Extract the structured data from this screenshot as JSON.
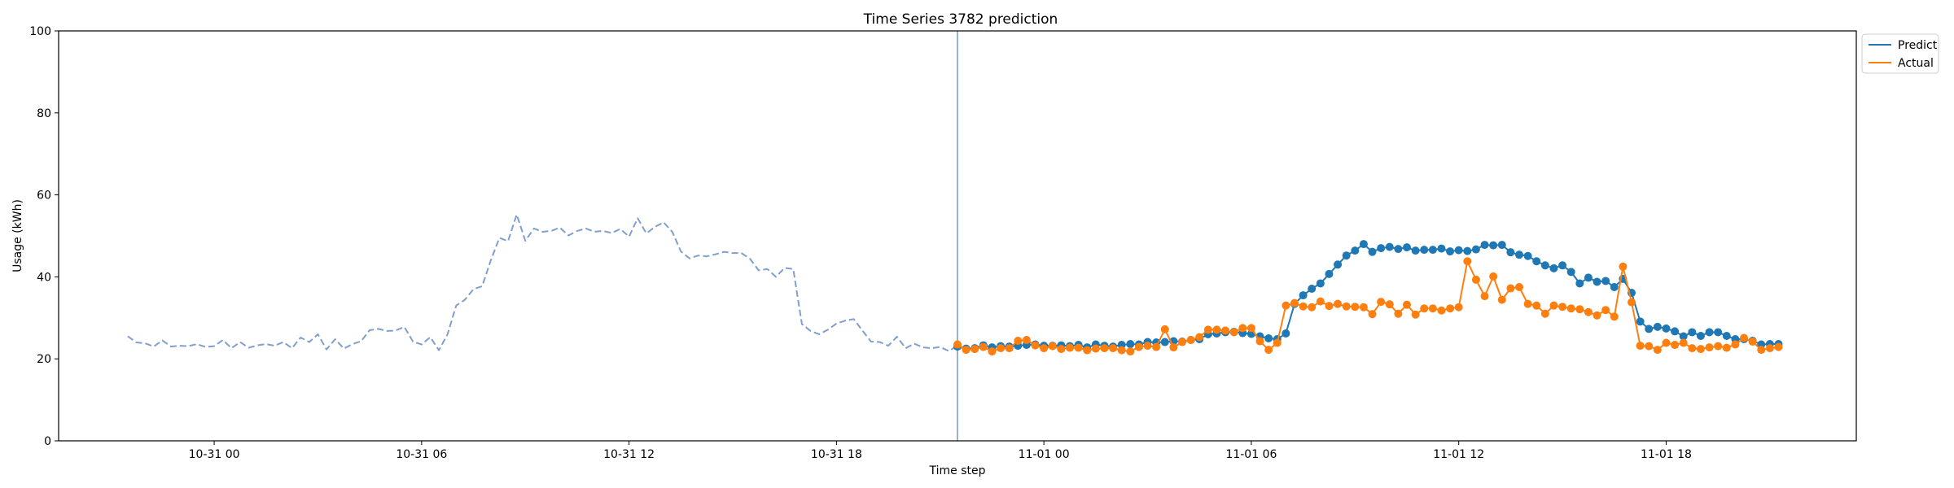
{
  "chart_data": {
    "type": "line",
    "title": "Time Series 3782 prediction",
    "xlabel": "Time step",
    "ylabel": "Usage (kWh)",
    "ylim": [
      0,
      100
    ],
    "yticks": [
      0,
      20,
      40,
      60,
      80,
      100
    ],
    "xlim": [
      -18,
      190
    ],
    "xticks": [
      {
        "x": 0,
        "label": "10-31 00"
      },
      {
        "x": 24,
        "label": "10-31 06"
      },
      {
        "x": 48,
        "label": "10-31 12"
      },
      {
        "x": 72,
        "label": "10-31 18"
      },
      {
        "x": 96,
        "label": "11-01 00"
      },
      {
        "x": 120,
        "label": "11-01 06"
      },
      {
        "x": 144,
        "label": "11-01 12"
      },
      {
        "x": 168,
        "label": "11-01 18"
      }
    ],
    "split_x": 86,
    "grid": false,
    "legend_position": "outside-top-right",
    "colors": {
      "history": "#7f9fcc",
      "predict": "#1f77b4",
      "actual": "#ff7f0e",
      "split_line": "#7f9fcc"
    },
    "history": {
      "x_start": -10,
      "values": [
        25.5,
        24,
        23.8,
        23,
        24.5,
        23,
        23.2,
        23.1,
        23.6,
        22.9,
        23.1,
        24.6,
        22.6,
        24.1,
        22.7,
        23.3,
        23.6,
        23.2,
        24.1,
        22.6,
        25.2,
        24.1,
        26,
        22.3,
        24.8,
        22.5,
        23.6,
        24.3,
        27,
        27.3,
        26.8,
        26.9,
        27.8,
        24.2,
        23.5,
        25.3,
        22.1,
        26,
        33,
        34.4,
        37,
        37.7,
        44,
        49.5,
        48.7,
        55.2,
        48.8,
        51.8,
        51,
        51.2,
        52,
        50.1,
        51.2,
        51.8,
        51,
        51.2,
        50.7,
        51.7,
        49.8,
        54.3,
        50.6,
        52.2,
        53.3,
        51,
        46.2,
        44.5,
        45.2,
        45,
        45.5,
        46.1,
        45.8,
        45.8,
        44.4,
        41.6,
        41.9,
        40,
        42.2,
        41.9,
        28.5,
        26.8,
        26,
        27.1,
        28.6,
        29.3,
        29.7,
        26.9,
        24.2,
        24.1,
        23.2,
        25.4,
        22.6,
        23.7,
        22.8,
        22.6,
        22.9,
        21.9,
        23.2
      ]
    },
    "series": [
      {
        "name": "Predict",
        "x_start": 86,
        "values": [
          23,
          22.5,
          22.6,
          23.3,
          22.8,
          23.1,
          23,
          23.2,
          23.4,
          23.5,
          23.2,
          23.2,
          23.3,
          23.1,
          23.4,
          22.8,
          23.5,
          23.2,
          23,
          23.4,
          23.6,
          23.5,
          24.1,
          24,
          24.1,
          24.3,
          24.2,
          24.6,
          24.8,
          26,
          26.2,
          26.5,
          26.6,
          26.3,
          26.1,
          25.5,
          25,
          24.8,
          26.2,
          33.4,
          35.5,
          37.1,
          38.4,
          40.7,
          43,
          45.2,
          46.4,
          48,
          46.1,
          47,
          47.3,
          46.8,
          47.2,
          46.4,
          46.6,
          46.6,
          46.9,
          46.2,
          46.5,
          46.3,
          46.7,
          47.8,
          47.7,
          47.8,
          46,
          45.4,
          45.1,
          43.8,
          42.8,
          42.1,
          42.8,
          41.2,
          38.4,
          39.8,
          38.8,
          39,
          37.5,
          39.5,
          36.1,
          29.1,
          27.3,
          27.8,
          27.4,
          26.7,
          25.5,
          26.5,
          25.6,
          26.5,
          26.5,
          25.6,
          24.8,
          24.8,
          24.4,
          23.5,
          23.6,
          23.6
        ]
      },
      {
        "name": "Actual",
        "x_start": 86,
        "values": [
          23.5,
          22.2,
          22.4,
          22.9,
          21.8,
          22.6,
          22.6,
          24.4,
          24.6,
          23.3,
          22.6,
          23.1,
          22.4,
          22.7,
          22.7,
          22.1,
          22.5,
          22.6,
          22.6,
          22.1,
          21.8,
          22.9,
          23.2,
          22.9,
          27.2,
          22.8,
          24.1,
          24.6,
          25.3,
          27.1,
          27.1,
          26.9,
          26.5,
          27.5,
          27.5,
          24.3,
          22.2,
          23.9,
          33,
          33.6,
          32.8,
          32.6,
          34,
          32.9,
          33.4,
          32.8,
          32.7,
          32.6,
          30.9,
          33.9,
          33.3,
          31,
          33.2,
          30.8,
          32.3,
          32.3,
          31.8,
          32.3,
          32.6,
          43.8,
          39.3,
          35.3,
          40.1,
          34.4,
          37.2,
          37.5,
          33.4,
          33,
          31,
          33,
          32.7,
          32.3,
          32.1,
          31.4,
          30.6,
          31.9,
          30.3,
          42.5,
          33.8,
          23.2,
          23.1,
          22.2,
          23.9,
          23.4,
          23.9,
          22.6,
          22.4,
          22.8,
          23.1,
          22.7,
          23.5,
          25.1,
          24.2,
          22.2,
          22.6,
          22.9
        ]
      }
    ]
  }
}
